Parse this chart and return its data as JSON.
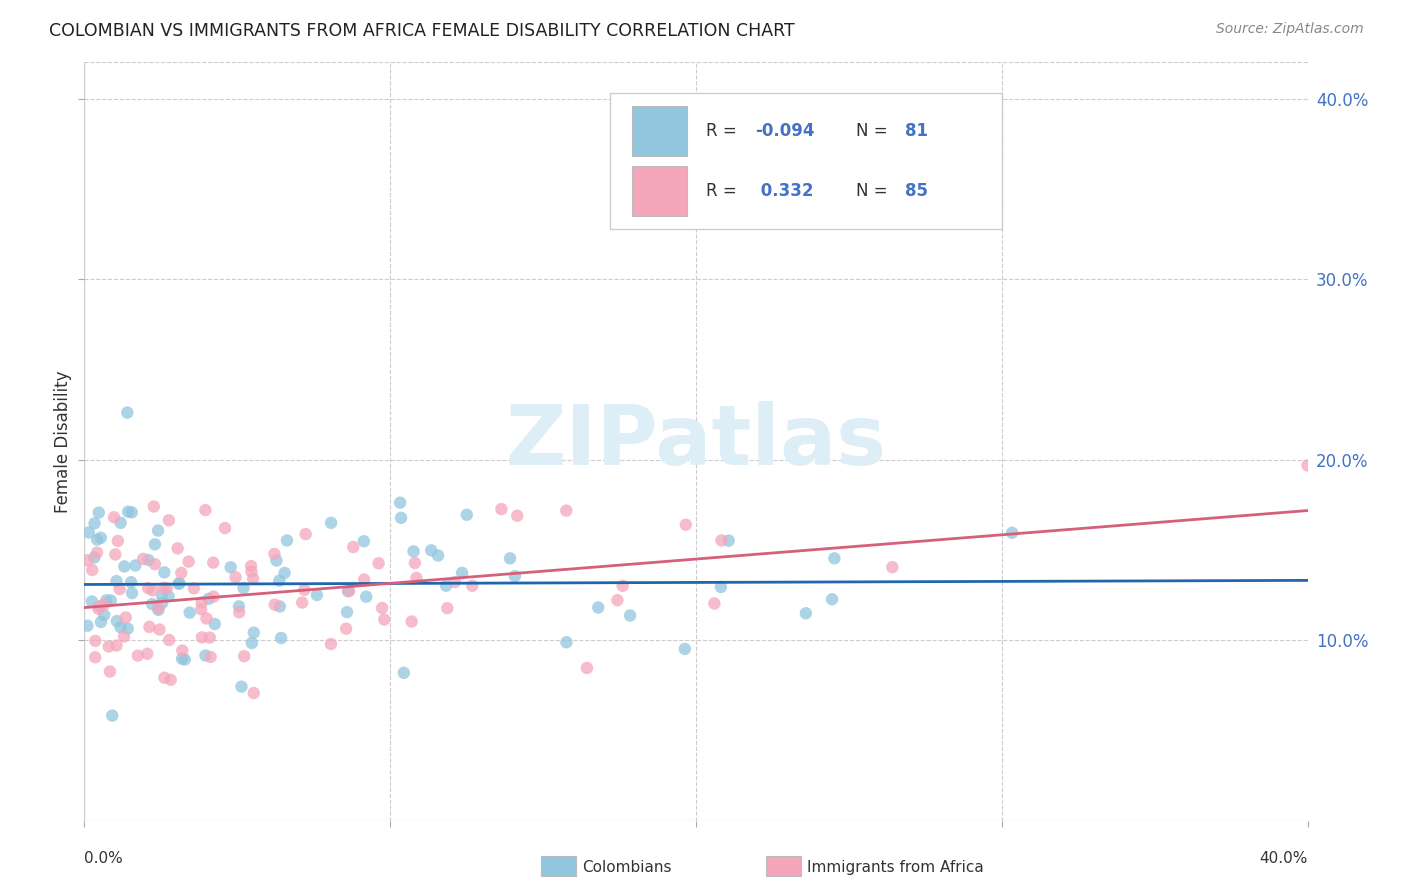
{
  "title": "COLOMBIAN VS IMMIGRANTS FROM AFRICA FEMALE DISABILITY CORRELATION CHART",
  "source": "Source: ZipAtlas.com",
  "ylabel": "Female Disability",
  "x_min": 0.0,
  "x_max": 0.4,
  "y_min": 0.0,
  "y_max": 0.42,
  "yticks": [
    0.1,
    0.2,
    0.3,
    0.4
  ],
  "ytick_labels": [
    "10.0%",
    "20.0%",
    "30.0%",
    "40.0%"
  ],
  "colombians_R": -0.094,
  "colombians_N": 81,
  "africans_R": 0.332,
  "africans_N": 85,
  "color_colombians": "#92c5de",
  "color_africans": "#f4a6ba",
  "color_line_colombians": "#2166ac",
  "color_line_africans": "#d6607a",
  "background_color": "#ffffff",
  "watermark_color": "#ddeef6",
  "scatter_alpha": 0.75,
  "scatter_size": 80
}
